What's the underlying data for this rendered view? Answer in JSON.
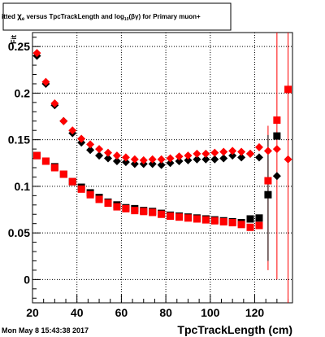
{
  "chart_data": {
    "type": "scatter",
    "title_parts": {
      "pre": "itted  ",
      "sym": "χ",
      "sub": "e",
      "mid": "  versus  TpcTrackLength  and  log",
      "sub2": "10",
      "post": "(βγ)  for Primary muon+"
    },
    "ylabel": "Fit",
    "xlabel": "TpcTrackLength (cm)",
    "timestamp": "Mon May  8 15:43:38 2017",
    "xlim": [
      20,
      137
    ],
    "ylim": [
      -0.025,
      0.265
    ],
    "xticks": [
      20,
      40,
      60,
      80,
      100,
      120
    ],
    "xtick_labels": [
      "20",
      "40",
      "60",
      "80",
      "100",
      "120"
    ],
    "yticks": [
      0,
      0.05,
      0.1,
      0.15,
      0.2,
      0.25
    ],
    "ytick_labels": [
      "0",
      "0.05",
      "0.1",
      "0.15",
      "0.2",
      "0.25"
    ],
    "grid": true,
    "colors": {
      "red": "#ff0000",
      "black": "#000000"
    },
    "series": [
      {
        "marker": "diamond",
        "color": "#000000",
        "points": [
          {
            "x": 22,
            "y": 0.24
          },
          {
            "x": 26,
            "y": 0.21
          },
          {
            "x": 30,
            "y": 0.187
          },
          {
            "x": 34,
            "y": 0.17
          },
          {
            "x": 38,
            "y": 0.157
          },
          {
            "x": 42,
            "y": 0.147
          },
          {
            "x": 46,
            "y": 0.139
          },
          {
            "x": 50,
            "y": 0.133
          },
          {
            "x": 54,
            "y": 0.13
          },
          {
            "x": 58,
            "y": 0.127
          },
          {
            "x": 62,
            "y": 0.126
          },
          {
            "x": 66,
            "y": 0.124
          },
          {
            "x": 70,
            "y": 0.124
          },
          {
            "x": 74,
            "y": 0.124
          },
          {
            "x": 78,
            "y": 0.123
          },
          {
            "x": 82,
            "y": 0.125
          },
          {
            "x": 86,
            "y": 0.127
          },
          {
            "x": 90,
            "y": 0.128
          },
          {
            "x": 94,
            "y": 0.129
          },
          {
            "x": 98,
            "y": 0.129
          },
          {
            "x": 102,
            "y": 0.129
          },
          {
            "x": 106,
            "y": 0.13
          },
          {
            "x": 110,
            "y": 0.133
          },
          {
            "x": 114,
            "y": 0.131
          },
          {
            "x": 118,
            "y": 0.135
          },
          {
            "x": 122,
            "y": 0.131
          },
          {
            "x": 130,
            "y": 0.111
          }
        ]
      },
      {
        "marker": "diamond",
        "color": "#ff0000",
        "points": [
          {
            "x": 22,
            "y": 0.243
          },
          {
            "x": 26,
            "y": 0.212
          },
          {
            "x": 30,
            "y": 0.189
          },
          {
            "x": 34,
            "y": 0.17
          },
          {
            "x": 38,
            "y": 0.16
          },
          {
            "x": 42,
            "y": 0.151
          },
          {
            "x": 46,
            "y": 0.145
          },
          {
            "x": 50,
            "y": 0.14
          },
          {
            "x": 54,
            "y": 0.136
          },
          {
            "x": 58,
            "y": 0.133
          },
          {
            "x": 62,
            "y": 0.131
          },
          {
            "x": 66,
            "y": 0.129
          },
          {
            "x": 70,
            "y": 0.128
          },
          {
            "x": 74,
            "y": 0.129
          },
          {
            "x": 78,
            "y": 0.129
          },
          {
            "x": 82,
            "y": 0.13
          },
          {
            "x": 86,
            "y": 0.132
          },
          {
            "x": 90,
            "y": 0.133
          },
          {
            "x": 94,
            "y": 0.135
          },
          {
            "x": 98,
            "y": 0.135
          },
          {
            "x": 102,
            "y": 0.136
          },
          {
            "x": 106,
            "y": 0.137
          },
          {
            "x": 110,
            "y": 0.138
          },
          {
            "x": 114,
            "y": 0.137
          },
          {
            "x": 118,
            "y": 0.135
          },
          {
            "x": 122,
            "y": 0.142
          },
          {
            "x": 126,
            "y": 0.138
          },
          {
            "x": 130,
            "y": 0.14
          },
          {
            "x": 135,
            "y": 0.129
          }
        ]
      },
      {
        "marker": "square",
        "color": "#000000",
        "points": [
          {
            "x": 22,
            "y": 0.133
          },
          {
            "x": 26,
            "y": 0.127
          },
          {
            "x": 30,
            "y": 0.121
          },
          {
            "x": 34,
            "y": 0.113
          },
          {
            "x": 38,
            "y": 0.105
          },
          {
            "x": 42,
            "y": 0.099
          },
          {
            "x": 46,
            "y": 0.093
          },
          {
            "x": 50,
            "y": 0.088
          },
          {
            "x": 54,
            "y": 0.083
          },
          {
            "x": 58,
            "y": 0.08
          },
          {
            "x": 62,
            "y": 0.077
          },
          {
            "x": 66,
            "y": 0.076
          },
          {
            "x": 70,
            "y": 0.074
          },
          {
            "x": 74,
            "y": 0.073
          },
          {
            "x": 78,
            "y": 0.071
          },
          {
            "x": 82,
            "y": 0.069
          },
          {
            "x": 86,
            "y": 0.068
          },
          {
            "x": 90,
            "y": 0.067
          },
          {
            "x": 94,
            "y": 0.066
          },
          {
            "x": 98,
            "y": 0.065
          },
          {
            "x": 102,
            "y": 0.064
          },
          {
            "x": 106,
            "y": 0.063
          },
          {
            "x": 110,
            "y": 0.062
          },
          {
            "x": 114,
            "y": 0.061
          },
          {
            "x": 118,
            "y": 0.065
          },
          {
            "x": 122,
            "y": 0.066
          },
          {
            "x": 126,
            "y": 0.091
          },
          {
            "x": 130,
            "y": 0.154
          }
        ]
      },
      {
        "marker": "square",
        "color": "#ff0000",
        "points": [
          {
            "x": 22,
            "y": 0.133
          },
          {
            "x": 26,
            "y": 0.127
          },
          {
            "x": 30,
            "y": 0.12
          },
          {
            "x": 34,
            "y": 0.113
          },
          {
            "x": 38,
            "y": 0.105
          },
          {
            "x": 42,
            "y": 0.097
          },
          {
            "x": 46,
            "y": 0.091
          },
          {
            "x": 50,
            "y": 0.086
          },
          {
            "x": 54,
            "y": 0.082
          },
          {
            "x": 58,
            "y": 0.078
          },
          {
            "x": 62,
            "y": 0.076
          },
          {
            "x": 66,
            "y": 0.074
          },
          {
            "x": 70,
            "y": 0.073
          },
          {
            "x": 74,
            "y": 0.072
          },
          {
            "x": 78,
            "y": 0.07
          },
          {
            "x": 82,
            "y": 0.068
          },
          {
            "x": 86,
            "y": 0.067
          },
          {
            "x": 90,
            "y": 0.066
          },
          {
            "x": 94,
            "y": 0.065
          },
          {
            "x": 98,
            "y": 0.064
          },
          {
            "x": 102,
            "y": 0.063
          },
          {
            "x": 106,
            "y": 0.062
          },
          {
            "x": 110,
            "y": 0.061
          },
          {
            "x": 114,
            "y": 0.059
          },
          {
            "x": 118,
            "y": 0.056
          },
          {
            "x": 122,
            "y": 0.058
          },
          {
            "x": 126,
            "y": 0.106
          },
          {
            "x": 130,
            "y": 0.171
          },
          {
            "x": 135,
            "y": 0.204
          }
        ]
      }
    ],
    "error_bars": [
      {
        "x": 126,
        "low": 0.01,
        "high": 0.165,
        "color": "#ff0000"
      },
      {
        "x": 126,
        "low": 0.02,
        "high": 0.155,
        "color": "#000000"
      },
      {
        "x": 130,
        "low": 0.0,
        "high": 0.27,
        "color": "#ff0000"
      },
      {
        "x": 135,
        "low": -0.025,
        "high": 0.27,
        "color": "#ff0000"
      }
    ]
  }
}
